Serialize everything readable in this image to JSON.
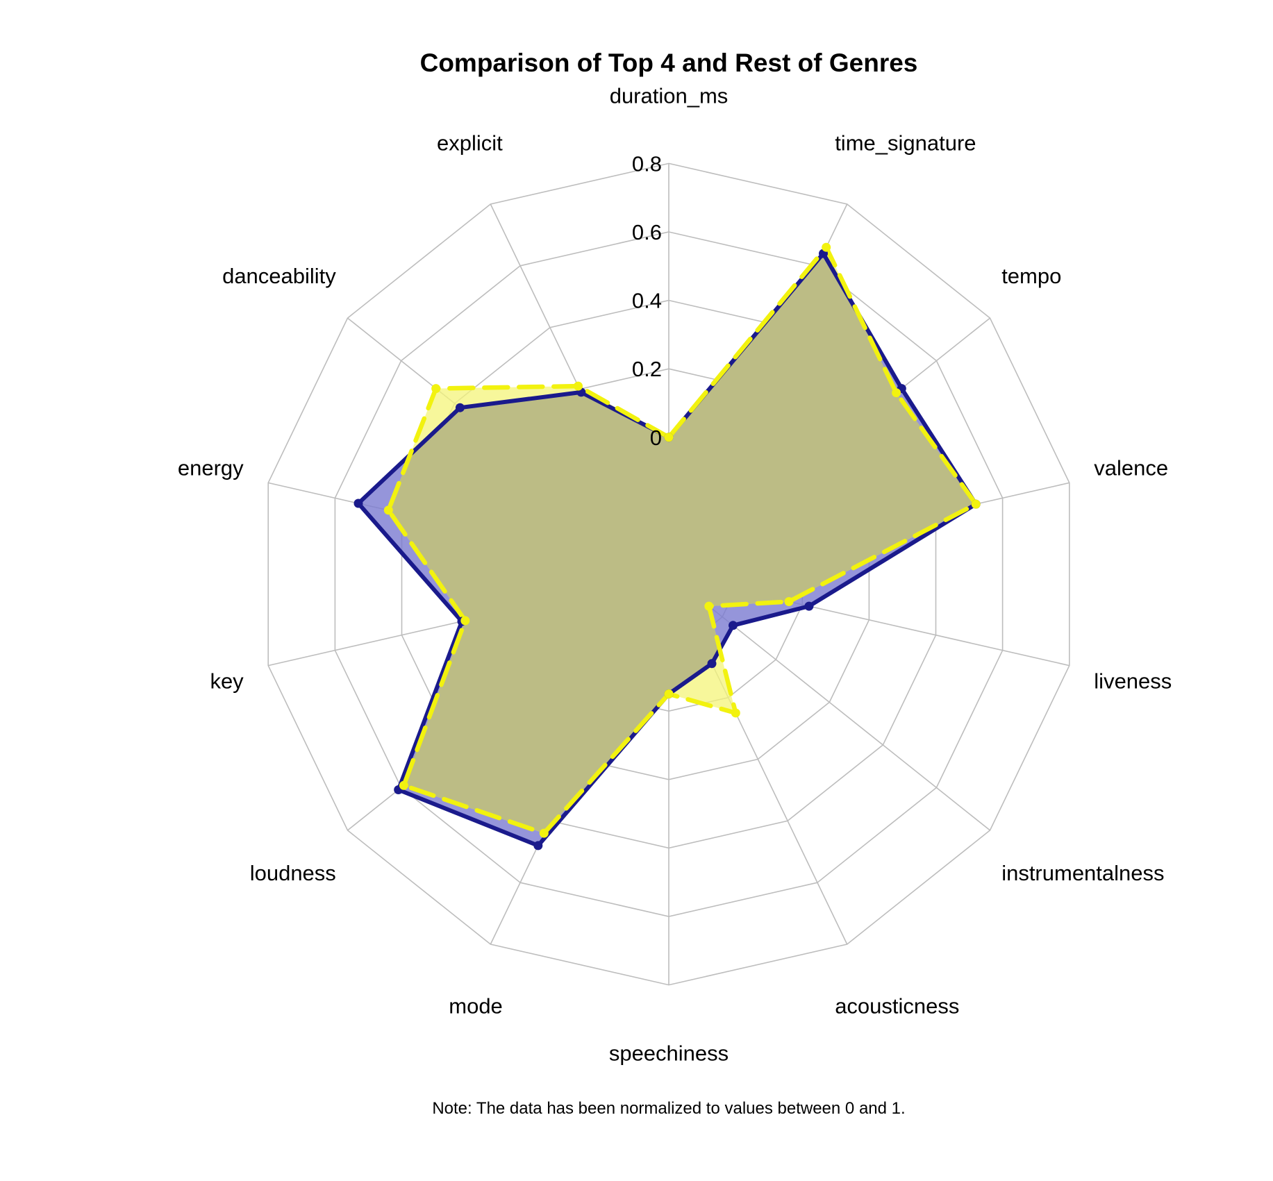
{
  "chart_data": {
    "type": "radar",
    "title": "Comparison of Top 4 and Rest of Genres",
    "note": "Note: The data has been normalized to values between 0 and 1.",
    "axes": [
      "duration_ms",
      "time_signature",
      "tempo",
      "valence",
      "liveness",
      "instrumentalness",
      "acousticness",
      "speechiness",
      "mode",
      "loudness",
      "key",
      "energy",
      "danceability",
      "explicit"
    ],
    "radial_ticks": [
      "0",
      "0.2",
      "0.4",
      "0.6",
      "0.8"
    ],
    "rmin": 0,
    "rmax": 0.8,
    "inner_offset": 0.4,
    "series": [
      {
        "name": "Top 4",
        "color": "#1a1a8c",
        "fill": "#7b7bd1",
        "line_style": "solid",
        "values": [
          0.0,
          0.64,
          0.47,
          0.52,
          0.02,
          -0.16,
          -0.11,
          -0.05,
          0.48,
          0.61,
          0.22,
          0.53,
          0.38,
          0.19
        ]
      },
      {
        "name": "Rest of Genres",
        "color": "#f2f20f",
        "fill": "#f4f47a",
        "line_style": "dashed",
        "values": [
          0.0,
          0.66,
          0.45,
          0.52,
          -0.04,
          -0.25,
          0.05,
          -0.05,
          0.44,
          0.59,
          0.21,
          0.44,
          0.47,
          0.21
        ]
      }
    ],
    "overlap_fill": "#bcbc85",
    "overlap_stroke": "#6b6b57"
  }
}
